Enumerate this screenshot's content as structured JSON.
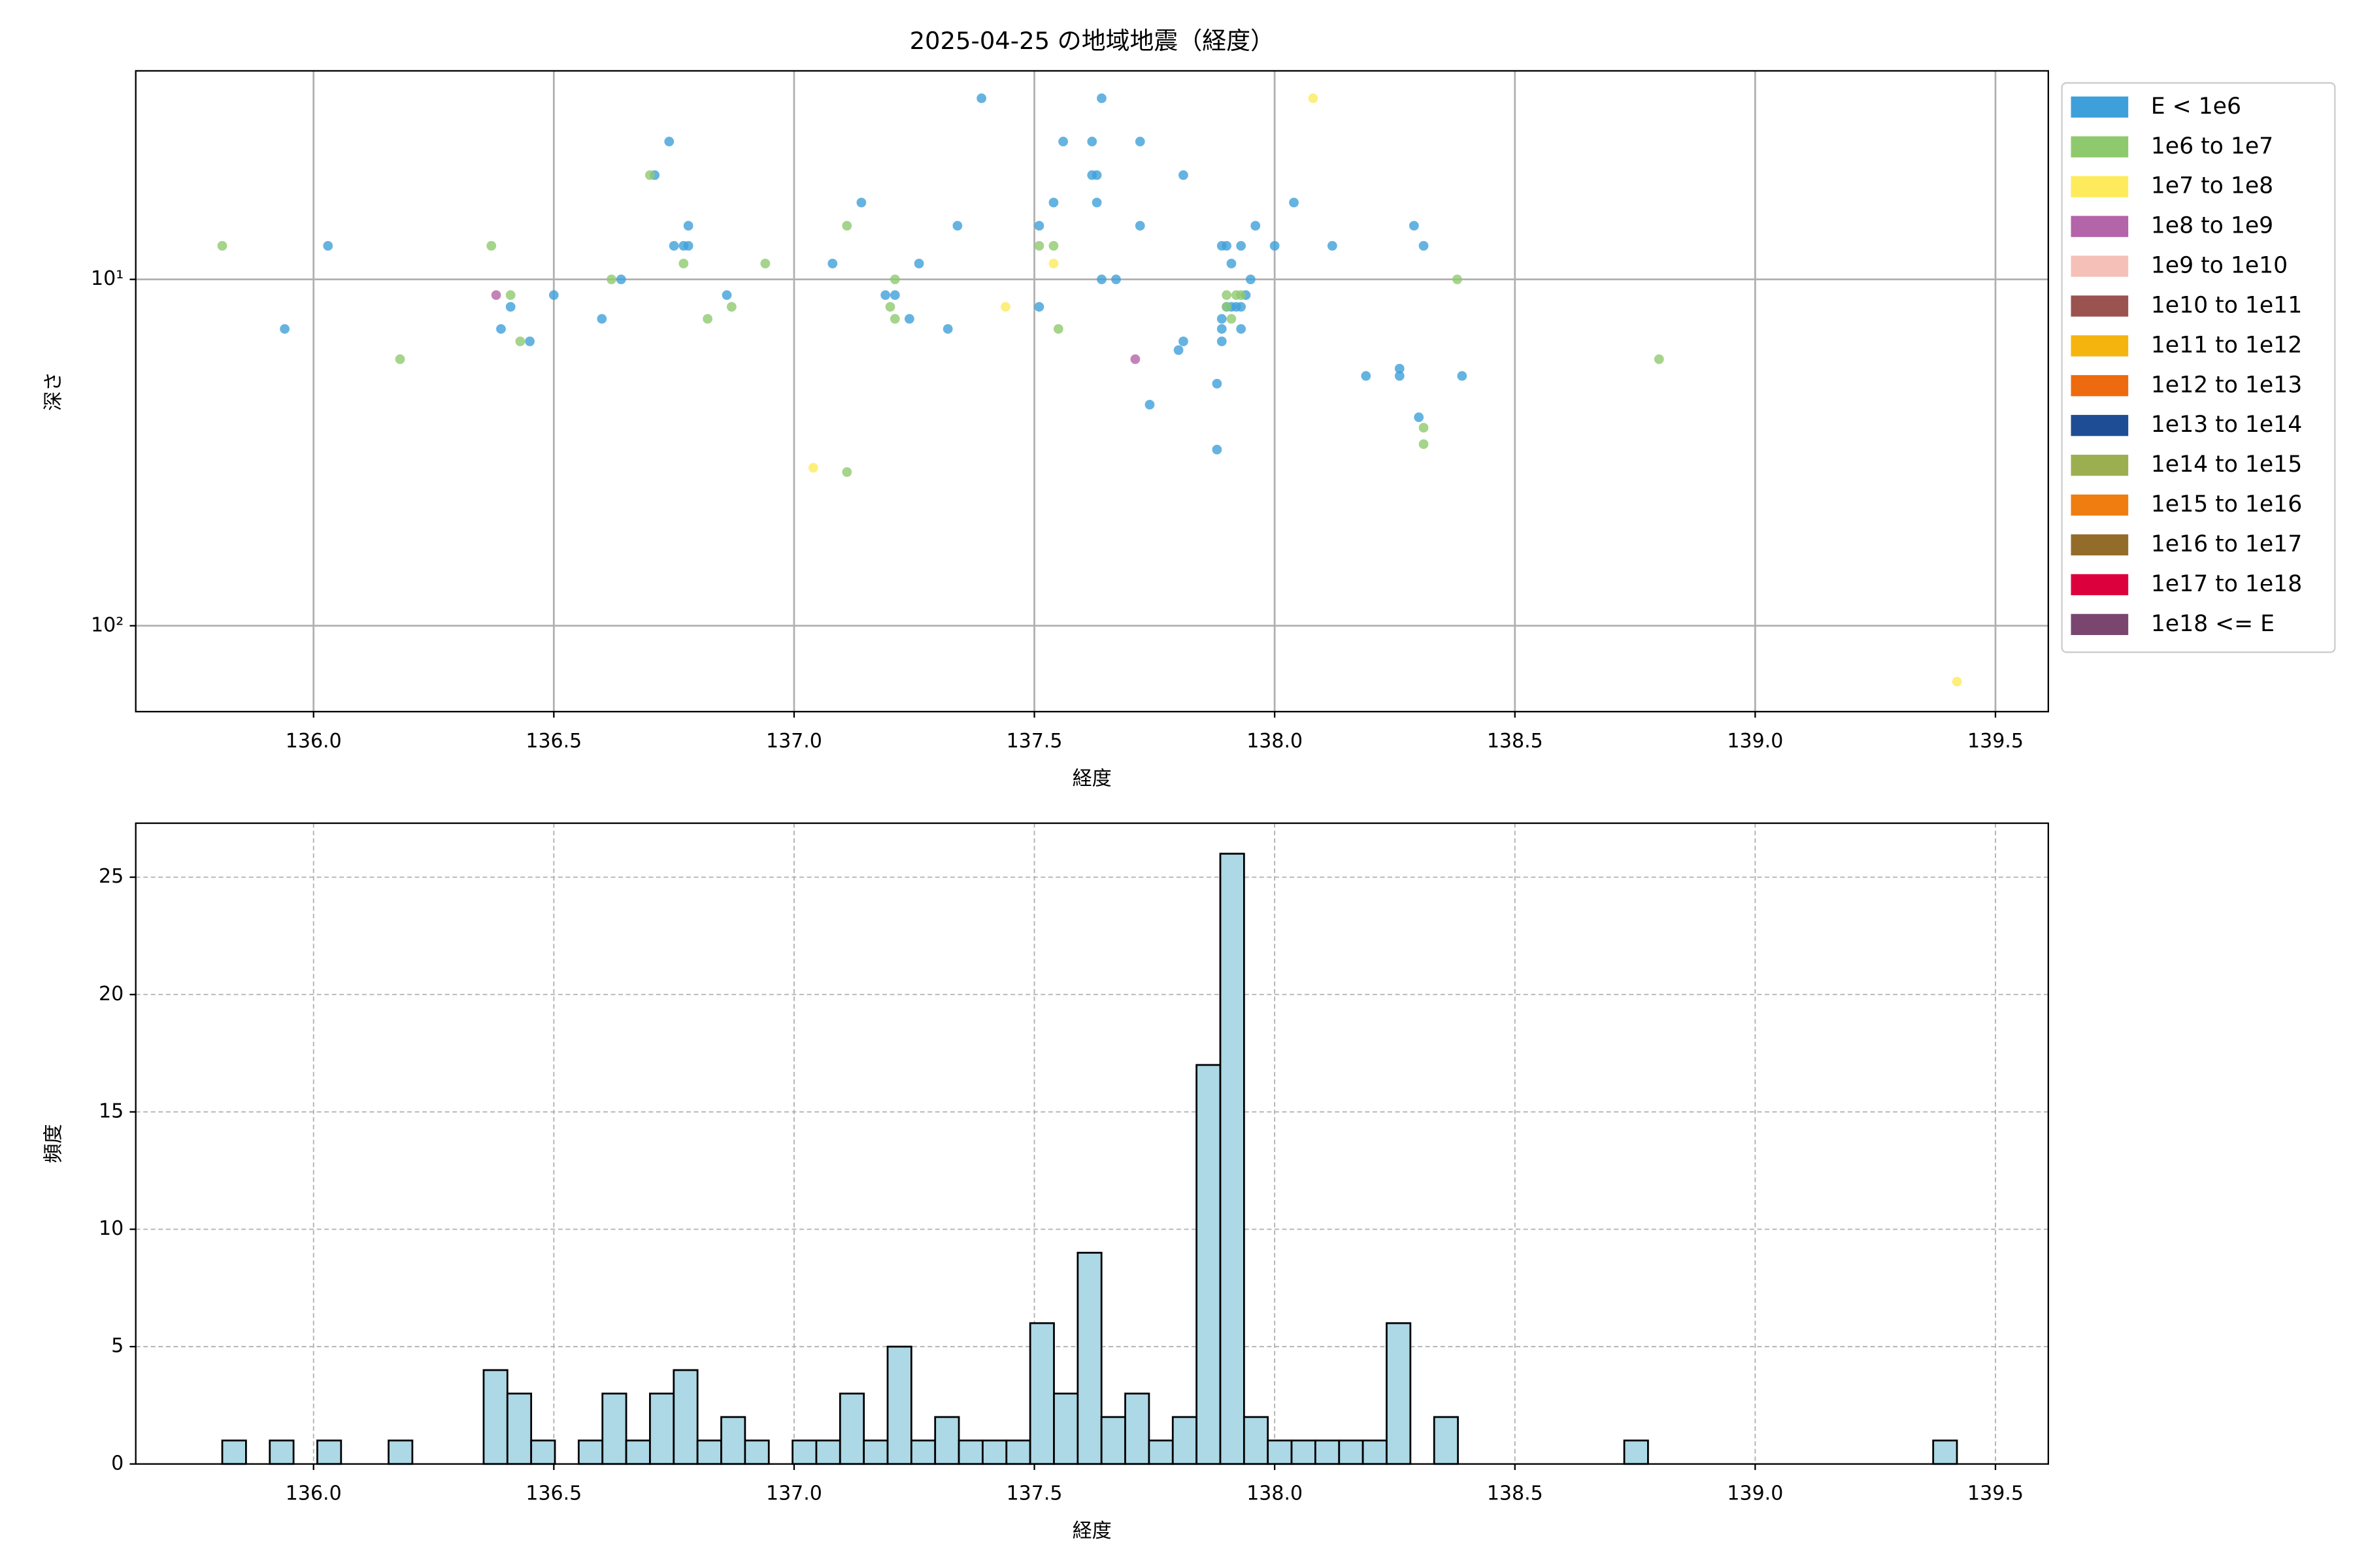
{
  "chart_data": [
    {
      "type": "scatter",
      "title": "2025-04-25 の地域地震（経度）",
      "xlabel": "経度",
      "ylabel": "深さ",
      "xlim": [
        135.63,
        139.61
      ],
      "xticks": [
        {
          "value": 136,
          "label": "136.0"
        },
        {
          "value": 136.5,
          "label": "136.5"
        },
        {
          "value": 137,
          "label": "137.0"
        },
        {
          "value": 137.5,
          "label": "137.5"
        },
        {
          "value": 138,
          "label": "138.0"
        },
        {
          "value": 138.5,
          "label": "138.5"
        },
        {
          "value": 139,
          "label": "139.0"
        },
        {
          "value": 139.5,
          "label": "139.5"
        }
      ],
      "ylim": [
        177,
        2.5
      ],
      "yscale": "log",
      "yticks": [
        {
          "value": 10,
          "label": "10¹"
        },
        {
          "value": 100,
          "label": "10²"
        }
      ],
      "grid": true,
      "legend": "outside-right",
      "series": [
        {
          "name": "E < 1e6",
          "color": "#3ea0da",
          "x": [
            135.94,
            136.03,
            136.41,
            136.39,
            136.45,
            136.5,
            136.6,
            136.64,
            136.71,
            136.74,
            136.75,
            136.77,
            136.78,
            136.78,
            136.86,
            137.08,
            137.14,
            137.19,
            137.21,
            137.24,
            137.26,
            137.32,
            137.34,
            137.39,
            137.51,
            137.51,
            137.54,
            137.56,
            137.62,
            137.62,
            137.63,
            137.63,
            137.64,
            137.64,
            137.67,
            137.72,
            137.72,
            137.74,
            137.8,
            137.81,
            137.81,
            137.88,
            137.88,
            137.89,
            137.89,
            137.89,
            137.89,
            137.9,
            137.91,
            137.9,
            137.91,
            137.92,
            137.93,
            137.93,
            137.93,
            137.94,
            137.95,
            137.96,
            138.0,
            138.04,
            138.12,
            138.19,
            138.26,
            138.26,
            138.29,
            138.31,
            138.3,
            138.39
          ],
          "values": [
            13.9,
            8.0,
            12.0,
            13.9,
            15.1,
            11.1,
            13.0,
            10,
            5.0,
            4.0,
            8.0,
            8.0,
            8.0,
            7.0,
            11.1,
            9.0,
            6.0,
            11.1,
            11.1,
            13.0,
            9.0,
            13.9,
            7.0,
            3.0,
            7.0,
            12.0,
            6.0,
            4.0,
            4.0,
            5.0,
            5.0,
            6.0,
            3.0,
            10,
            10,
            7.0,
            4.0,
            23,
            16.0,
            15.1,
            5.0,
            20,
            31,
            13.0,
            8.0,
            15.1,
            13.9,
            12.0,
            12.0,
            8.0,
            9.0,
            12.0,
            8.0,
            13.9,
            12.0,
            11.1,
            10,
            7.0,
            8.0,
            6.0,
            8.0,
            19.0,
            18.1,
            19.0,
            7.0,
            8.0,
            25.0,
            19.0
          ]
        },
        {
          "name": "1e6 to 1e7",
          "color": "#8fc96e",
          "x": [
            135.81,
            136.18,
            136.37,
            136.41,
            136.43,
            136.62,
            136.7,
            136.77,
            136.82,
            136.87,
            136.94,
            137.11,
            137.11,
            137.21,
            137.2,
            137.21,
            137.51,
            137.54,
            137.55,
            137.9,
            137.91,
            137.92,
            137.93,
            137.9,
            138.38,
            138.31,
            138.31,
            138.8
          ],
          "values": [
            8.0,
            17.0,
            8.0,
            11.1,
            15.1,
            10,
            5.0,
            9.0,
            13.0,
            12.0,
            9.0,
            7.0,
            36,
            10,
            12.0,
            13.0,
            8.0,
            8.0,
            13.9,
            11.1,
            13.0,
            11.1,
            11.1,
            12.0,
            10,
            26.8,
            29.9,
            17.0
          ]
        },
        {
          "name": "1e7 to 1e8",
          "color": "#fdeb5c",
          "x": [
            137.04,
            137.44,
            137.54,
            138.08,
            139.42
          ],
          "values": [
            35,
            12.0,
            9.0,
            3.0,
            145
          ]
        },
        {
          "name": "1e8 to 1e9",
          "color": "#b464a8",
          "x": [
            136.38,
            137.71
          ],
          "values": [
            11.1,
            17.0
          ]
        },
        {
          "name": "1e9 to 1e10",
          "color": "#f5c0b8",
          "x": [],
          "values": []
        },
        {
          "name": "1e10 to 1e11",
          "color": "#9b5350",
          "x": [],
          "values": []
        },
        {
          "name": "1e11 to 1e12",
          "color": "#f6b40e",
          "x": [],
          "values": []
        },
        {
          "name": "1e12 to 1e13",
          "color": "#ee6a0e",
          "x": [],
          "values": []
        },
        {
          "name": "1e13 to 1e14",
          "color": "#1e4d96",
          "x": [],
          "values": []
        },
        {
          "name": "1e14 to 1e15",
          "color": "#9caf50",
          "x": [],
          "values": []
        },
        {
          "name": "1e15 to 1e16",
          "color": "#f07d10",
          "x": [],
          "values": []
        },
        {
          "name": "1e16 to 1e17",
          "color": "#946c2a",
          "x": [],
          "values": []
        },
        {
          "name": "1e17 to 1e18",
          "color": "#dc003c",
          "x": [],
          "values": []
        },
        {
          "name": "1e18 <= E",
          "color": "#7a4670",
          "x": [],
          "values": []
        }
      ]
    },
    {
      "type": "histogram",
      "xlabel": "経度",
      "ylabel": "頻度",
      "color": "#add8e6",
      "xlim": [
        135.63,
        139.61
      ],
      "xticks": [
        {
          "value": 136,
          "label": "136.0"
        },
        {
          "value": 136.5,
          "label": "136.5"
        },
        {
          "value": 137,
          "label": "137.0"
        },
        {
          "value": 137.5,
          "label": "137.5"
        },
        {
          "value": 138,
          "label": "138.0"
        },
        {
          "value": 138.5,
          "label": "138.5"
        },
        {
          "value": 139,
          "label": "139.0"
        },
        {
          "value": 139.5,
          "label": "139.5"
        }
      ],
      "ylim": [
        0,
        27.3
      ],
      "yticks": [
        0,
        5,
        10,
        15,
        20,
        25
      ],
      "grid": true,
      "bins": [
        135.81,
        135.85945,
        135.9089,
        135.95835,
        136.0078,
        136.05725,
        136.1067,
        136.15615,
        136.2056,
        136.25505,
        136.3045,
        136.35395,
        136.4034,
        136.45285,
        136.5023,
        136.55175,
        136.6012,
        136.65065,
        136.7001,
        136.74955,
        136.799,
        136.84845,
        136.8979,
        136.94735,
        136.9968,
        137.04625,
        137.0957,
        137.14515,
        137.1946,
        137.24405,
        137.2935,
        137.34295,
        137.3924,
        137.44185,
        137.4913,
        137.54075,
        137.5902,
        137.63965,
        137.6891,
        137.73855,
        137.788,
        137.83745,
        137.8869,
        137.93635,
        137.9858,
        138.03525,
        138.0847,
        138.13415,
        138.1836,
        138.23305,
        138.2825,
        138.33195,
        138.3814,
        138.43085,
        138.4803,
        138.52975,
        138.5792,
        138.62865,
        138.6781,
        138.72755,
        138.777,
        138.82645,
        138.8759,
        138.92535,
        138.9748,
        139.02425,
        139.0737,
        139.12315,
        139.1726,
        139.22205,
        139.2715,
        139.32095,
        139.3704,
        139.41985
      ],
      "values": [
        1,
        0,
        1,
        0,
        1,
        0,
        0,
        1,
        0,
        0,
        0,
        4,
        3,
        1,
        0,
        1,
        3,
        1,
        3,
        4,
        1,
        2,
        1,
        0,
        1,
        1,
        3,
        1,
        5,
        1,
        2,
        1,
        1,
        1,
        6,
        3,
        9,
        2,
        3,
        1,
        2,
        17,
        26,
        2,
        1,
        1,
        1,
        1,
        1,
        6,
        0,
        2,
        0,
        0,
        0,
        0,
        0,
        0,
        0,
        1,
        0,
        0,
        0,
        0,
        0,
        0,
        0,
        0,
        0,
        0,
        0,
        0,
        1
      ]
    }
  ]
}
